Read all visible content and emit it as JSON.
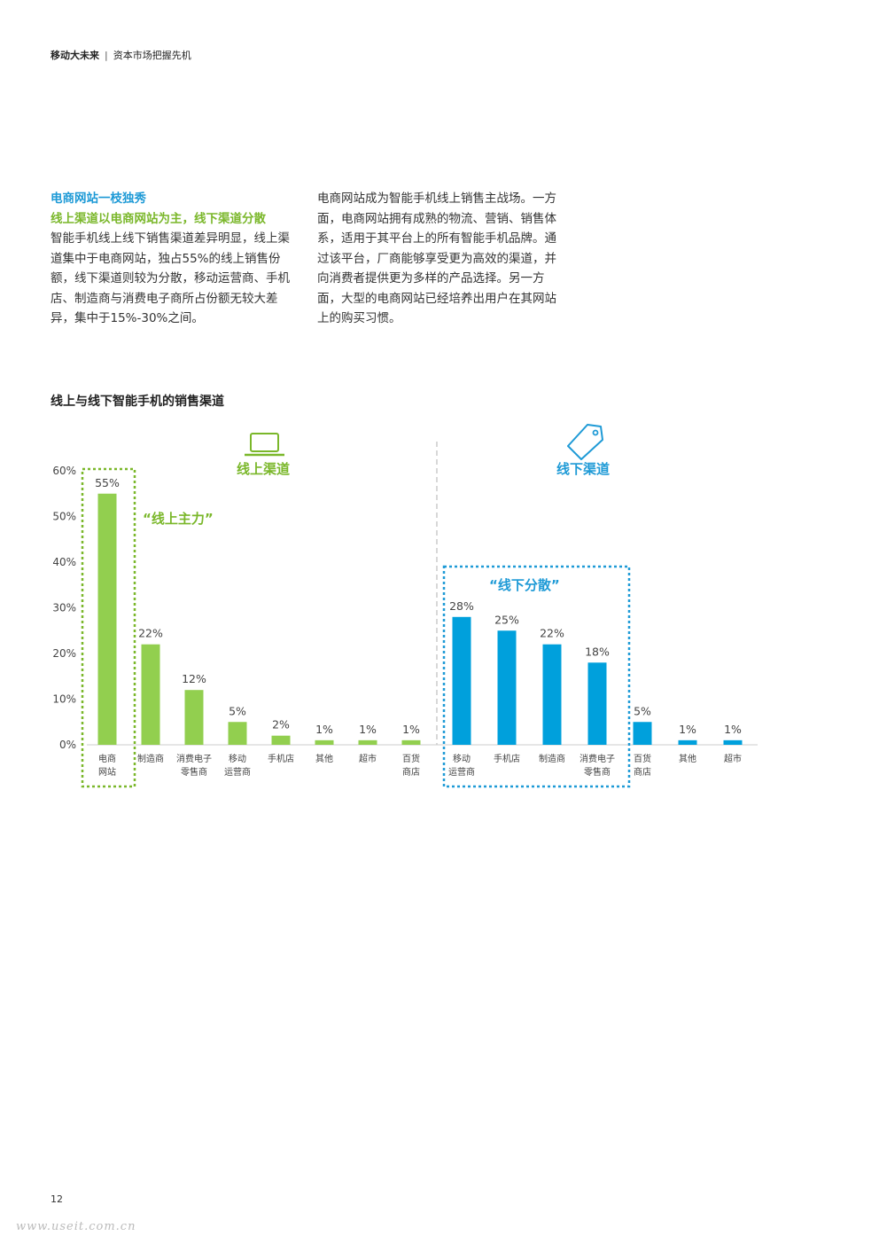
{
  "header": {
    "title": "移动大未来",
    "subtitle": "资本市场把握先机"
  },
  "intro": {
    "heading": "电商网站一枝独秀",
    "subheading": "线上渠道以电商网站为主，线下渠道分散",
    "left_text": "智能手机线上线下销售渠道差异明显，线上渠道集中于电商网站，独占55%的线上销售份额，线下渠道则较为分散，移动运营商、手机店、制造商与消费电子商所占份额无较大差异，集中于15%-30%之间。",
    "right_text": "电商网站成为智能手机线上销售主战场。一方面，电商网站拥有成熟的物流、营销、销售体系，适用于其平台上的所有智能手机品牌。通过该平台，厂商能够享受更为高效的渠道，并向消费者提供更为多样的产品选择。另一方面，大型的电商网站已经培养出用户在其网站上的购买习惯。"
  },
  "chart_title": "线上与线下智能手机的销售渠道",
  "chart_data": {
    "type": "bar",
    "title": "线上与线下智能手机的销售渠道",
    "ylim": [
      0,
      60
    ],
    "y_ticks": [
      "0%",
      "10%",
      "20%",
      "30%",
      "40%",
      "50%",
      "60%"
    ],
    "grid": false,
    "groups": [
      {
        "name": "线上渠道",
        "color": "#92cf4f",
        "callout": "“线上主力”",
        "categories": [
          [
            "电商",
            "网站"
          ],
          [
            "制造商"
          ],
          [
            "消费电子",
            "零售商"
          ],
          [
            "移动",
            "运营商"
          ],
          [
            "手机店"
          ],
          [
            "其他"
          ],
          [
            "超市"
          ],
          [
            "百货",
            "商店"
          ]
        ],
        "values": [
          55,
          22,
          12,
          5,
          2,
          1,
          1,
          1
        ],
        "labels": [
          "55%",
          "22%",
          "12%",
          "5%",
          "2%",
          "1%",
          "1%",
          "1%"
        ]
      },
      {
        "name": "线下渠道",
        "color": "#00a0dc",
        "callout": "“线下分散”",
        "categories": [
          [
            "移动",
            "运营商"
          ],
          [
            "手机店"
          ],
          [
            "制造商"
          ],
          [
            "消费电子",
            "零售商"
          ],
          [
            "百货",
            "商店"
          ],
          [
            "其他"
          ],
          [
            "超市"
          ]
        ],
        "values": [
          28,
          25,
          22,
          18,
          5,
          1,
          1
        ],
        "labels": [
          "28%",
          "25%",
          "22%",
          "18%",
          "5%",
          "1%",
          "1%"
        ]
      }
    ]
  },
  "icons": {
    "online": "laptop-icon",
    "offline": "price-tag-icon"
  },
  "colors": {
    "green": "#7ab72a",
    "blue": "#1e9ad6",
    "bar_green": "#92cf4f",
    "bar_blue": "#00a0dc"
  },
  "page_number": "12",
  "watermark": "www.useit.com.cn"
}
